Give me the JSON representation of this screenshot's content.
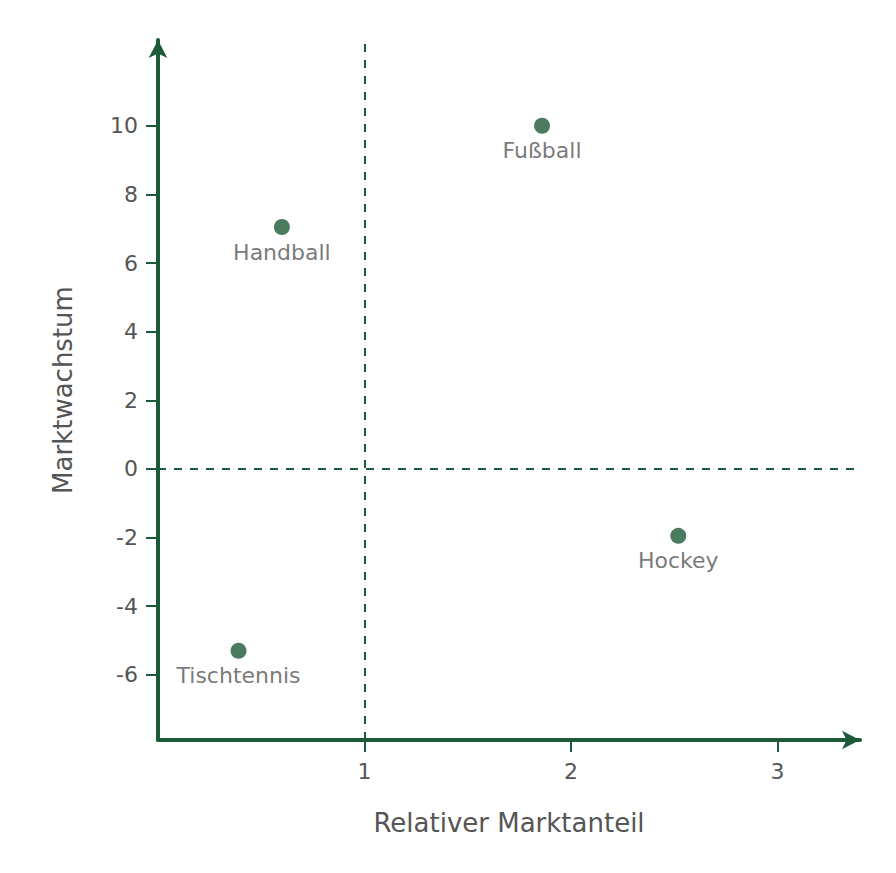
{
  "chart_data": {
    "type": "scatter",
    "x_label": "Relativer Marktanteil",
    "y_label": "Marktwachstum",
    "labels": [
      "Handball",
      "Fußball",
      "Hockey",
      "Tischtennis"
    ],
    "x": [
      0.6,
      1.86,
      2.52,
      0.39
    ],
    "values": [
      7.05,
      10,
      -1.95,
      -5.3
    ],
    "color": "#1d5a37",
    "marker": "circle",
    "xlim": [
      0,
      3.4
    ],
    "ylim": [
      -7.9,
      12.5
    ],
    "xticks": [
      1,
      2,
      3
    ],
    "yticks": [
      -6,
      -4,
      -2,
      0,
      2,
      4,
      6,
      8,
      10
    ],
    "grid": false,
    "quadrant_lines": {
      "x": 1,
      "y": 0
    }
  }
}
